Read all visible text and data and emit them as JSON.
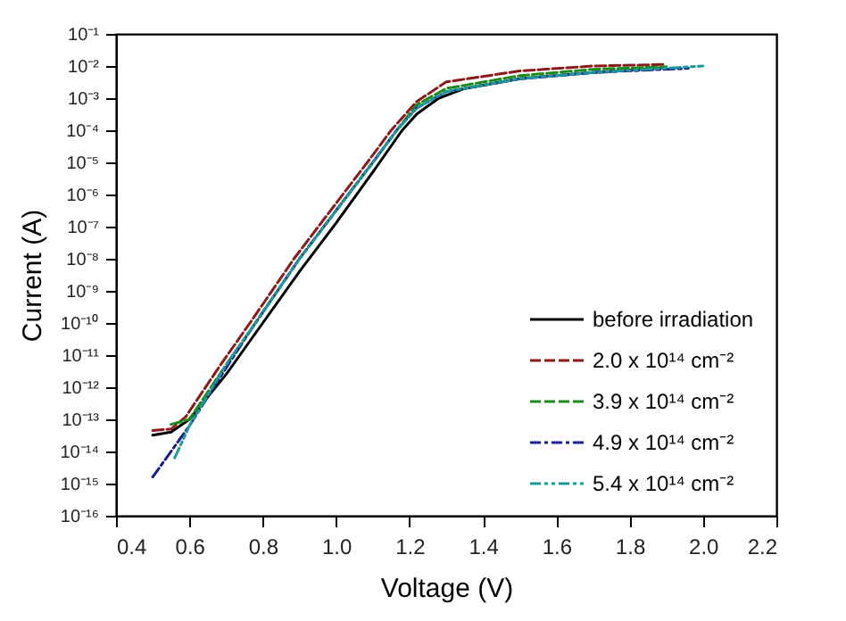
{
  "chart_data": {
    "type": "line",
    "xlabel": "Voltage (V)",
    "ylabel": "Current (A)",
    "log": "y",
    "grid": false,
    "legend": "bottom right",
    "marker": "none",
    "xlim": [
      0.4,
      2.2
    ],
    "xticks": [
      0.4,
      0.6,
      0.8,
      {
        "value": 1.0,
        "label": "1.0"
      },
      1.2,
      1.4,
      1.6,
      1.8,
      {
        "value": 2.0,
        "label": "2.0"
      },
      2.2
    ],
    "ylim": [
      1e-16,
      0.1
    ],
    "yticks": [
      {
        "value": 1e-16,
        "label": "10⁻¹⁶"
      },
      {
        "value": 1e-15,
        "label": "10⁻¹⁵"
      },
      {
        "value": 1e-14,
        "label": "10⁻¹⁴"
      },
      {
        "value": 1e-13,
        "label": "10⁻¹³"
      },
      {
        "value": 1e-12,
        "label": "10⁻¹²"
      },
      {
        "value": 1e-11,
        "label": "10⁻¹¹"
      },
      {
        "value": 1e-10,
        "label": "10⁻¹⁰"
      },
      {
        "value": 1e-09,
        "label": "10⁻⁹"
      },
      {
        "value": 1e-08,
        "label": "10⁻⁸"
      },
      {
        "value": 1e-07,
        "label": "10⁻⁷"
      },
      {
        "value": 1e-06,
        "label": "10⁻⁶"
      },
      {
        "value": 1e-05,
        "label": "10⁻⁵"
      },
      {
        "value": 0.0001,
        "label": "10⁻⁴"
      },
      {
        "value": 0.001,
        "label": "10⁻³"
      },
      {
        "value": 0.01,
        "label": "10⁻²"
      },
      {
        "value": 0.1,
        "label": "10⁻¹"
      }
    ],
    "series": [
      {
        "name": "before irradiation",
        "color": "#000000",
        "line_style": "solid",
        "x": [
          0.5,
          0.55,
          0.6,
          0.7,
          0.8,
          0.9,
          1.0,
          1.1,
          1.18,
          1.22,
          1.28,
          1.35,
          1.5,
          1.7,
          1.9
        ],
        "values": [
          3.2e-14,
          4e-14,
          1e-13,
          2.5e-12,
          1e-10,
          4e-09,
          1.3e-07,
          5e-06,
          0.0001,
          0.00032,
          0.001,
          0.002,
          0.004,
          0.0063,
          0.0089
        ]
      },
      {
        "name": "2.0 x 10¹⁴ cm⁻²",
        "color": "#8b1a1a",
        "line_style": "dashed",
        "x": [
          0.5,
          0.55,
          0.59,
          0.685,
          0.765,
          0.885,
          0.985,
          1.085,
          1.15,
          1.22,
          1.3,
          1.5,
          1.7,
          1.9
        ],
        "values": [
          4.5e-14,
          5e-14,
          1.2e-13,
          5e-12,
          1e-10,
          1e-08,
          3.2e-07,
          1e-05,
          0.0001,
          0.00079,
          0.0032,
          0.007,
          0.01,
          0.0112
        ]
      },
      {
        "name": "3.9 x 10¹⁴ cm⁻²",
        "color": "#1a8c1a",
        "line_style": "dashed",
        "x": [
          0.55,
          0.6,
          0.7,
          0.78,
          0.9,
          1.0,
          1.1,
          1.165,
          1.22,
          1.3,
          1.5,
          1.7,
          1.9
        ],
        "values": [
          7e-14,
          1e-13,
          5e-12,
          1e-10,
          1e-08,
          3.2e-07,
          1e-05,
          0.0001,
          0.00063,
          0.002,
          0.005,
          0.0079,
          0.0095
        ]
      },
      {
        "name": "4.9 x 10¹⁴ cm⁻²",
        "color": "#1a1a8c",
        "line_style": "dashdot",
        "x": [
          0.5,
          0.55,
          0.6,
          0.7,
          0.78,
          0.9,
          1.0,
          1.1,
          1.165,
          1.22,
          1.3,
          1.5,
          1.7,
          1.96
        ],
        "values": [
          1.6e-15,
          1e-14,
          6.3e-14,
          4e-12,
          1e-10,
          1e-08,
          3.2e-07,
          1e-05,
          0.0001,
          0.0005,
          0.0016,
          0.004,
          0.0063,
          0.0085
        ]
      },
      {
        "name": "5.4 x 10¹⁴ cm⁻²",
        "color": "#1a9a9a",
        "line_style": "dashdotdot",
        "x": [
          0.56,
          0.6,
          0.7,
          0.78,
          0.9,
          1.0,
          1.1,
          1.165,
          1.22,
          1.3,
          1.5,
          1.7,
          2.0
        ],
        "values": [
          6.3e-15,
          6.3e-14,
          5e-12,
          1e-10,
          1e-08,
          3.2e-07,
          1e-05,
          0.0001,
          0.0005,
          0.0016,
          0.004,
          0.0063,
          0.01
        ]
      }
    ]
  }
}
